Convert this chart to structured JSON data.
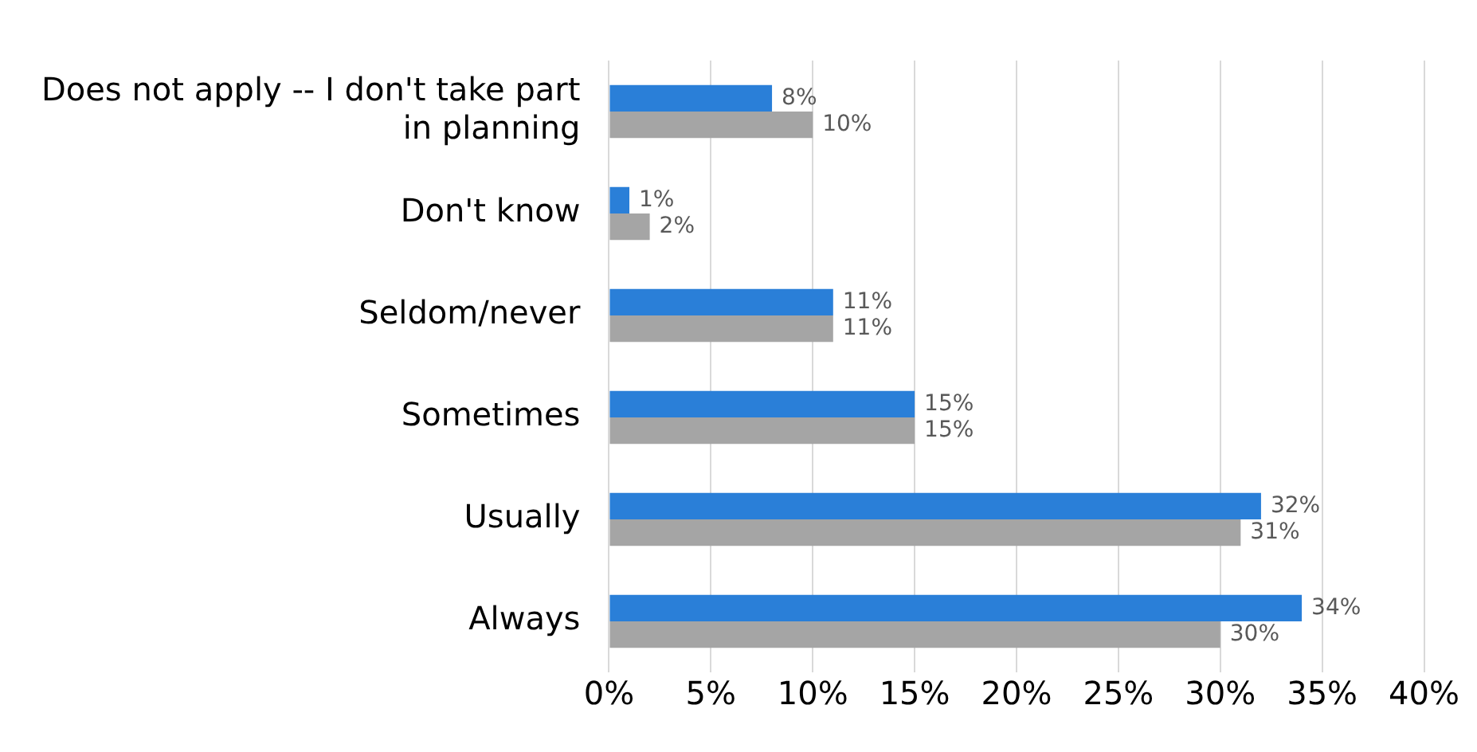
{
  "chart_data": {
    "type": "bar",
    "orientation": "horizontal",
    "categories": [
      "Does not apply -- I don't take part in planning",
      "Don't know",
      "Seldom/never",
      "Sometimes",
      "Usually",
      "Always"
    ],
    "series": [
      {
        "color": "#2a7fd8",
        "values": [
          8,
          1,
          11,
          15,
          32,
          34
        ],
        "value_labels": [
          "8%",
          "1%",
          "11%",
          "15%",
          "32%",
          "34%"
        ]
      },
      {
        "color": "#a5a5a5",
        "values": [
          10,
          2,
          11,
          15,
          31,
          30
        ],
        "value_labels": [
          "10%",
          "2%",
          "11%",
          "15%",
          "31%",
          "30%"
        ]
      }
    ],
    "xlim": [
      0,
      40
    ],
    "xticks": [
      {
        "value": 0,
        "label": "0%"
      },
      {
        "value": 5,
        "label": "5%"
      },
      {
        "value": 10,
        "label": "10%"
      },
      {
        "value": 15,
        "label": "15%"
      },
      {
        "value": 20,
        "label": "20%"
      },
      {
        "value": 25,
        "label": "25%"
      },
      {
        "value": 30,
        "label": "30%"
      },
      {
        "value": 35,
        "label": "35%"
      },
      {
        "value": 40,
        "label": "40%"
      }
    ],
    "grid": "x",
    "legend": false
  }
}
